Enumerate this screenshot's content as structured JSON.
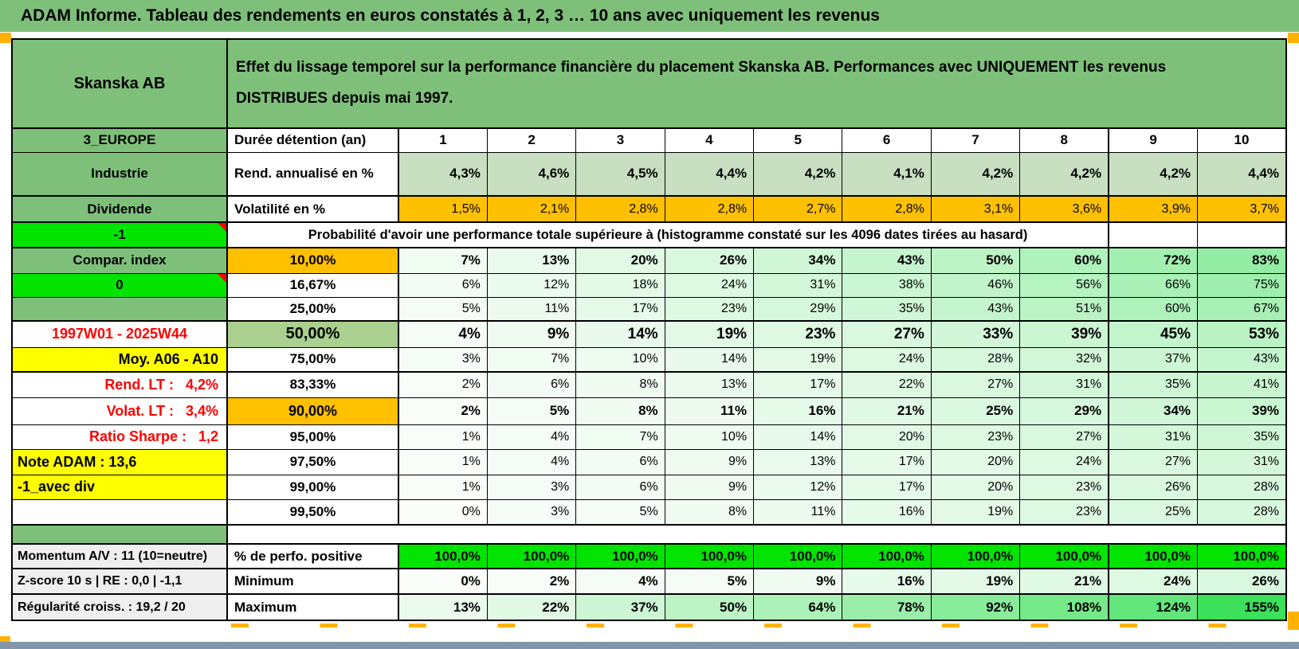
{
  "title": "ADAM Informe. Tableau des rendements en euros constatés à 1, 2, 3 … 10 ans avec uniquement les revenus",
  "header": {
    "name": "Skanska AB",
    "description": "Effet du lissage temporel sur la performance financière du placement Skanska AB. Performances avec UNIQUEMENT les revenus DISTRIBUES depuis mai 1997."
  },
  "left_col": {
    "europe": "3_EUROPE",
    "industrie": "Industrie",
    "dividende": "Dividende",
    "minus1": "-1",
    "compar": "Compar. index",
    "zero": "0",
    "period": "1997W01 - 2025W44",
    "moy": "Moy. A06 - A10",
    "rend_lt": "Rend. LT :   4,2%",
    "volat_lt": "Volat. LT :   3,4%",
    "sharpe": "Ratio Sharpe :   1,2",
    "note": "Note ADAM : 13,6",
    "avecdiv": "-1_avec div",
    "momentum": "Momentum A/V : 11 (10=neutre)",
    "zscore": "Z-score 10 s | RE : 0,0 | -1,1",
    "regularite": "Régularité croiss. : 19,2 / 20"
  },
  "labels": {
    "duree": "Durée détention (an)",
    "rend": "Rend. annualisé en %",
    "volat": "Volatilité en %",
    "proba": "Probabilité d'avoir une performance totale supérieure à (histogramme constaté sur les 4096 dates tirées au hasard)",
    "q10": "10,00%",
    "q16": "16,67%",
    "q25": "25,00%",
    "q50": "50,00%",
    "q75": "75,00%",
    "q83": "83,33%",
    "q90": "90,00%",
    "q95": "95,00%",
    "q97": "97,50%",
    "q99": "99,00%",
    "q995": "99,50%",
    "perfo": "% de perfo. positive",
    "minimum": "Minimum",
    "maximum": "Maximum"
  },
  "values": {
    "cols": [
      "1",
      "2",
      "3",
      "4",
      "5",
      "6",
      "7",
      "8",
      "9",
      "10"
    ],
    "rend": [
      "4,3%",
      "4,6%",
      "4,5%",
      "4,4%",
      "4,2%",
      "4,1%",
      "4,2%",
      "4,2%",
      "4,2%",
      "4,4%"
    ],
    "volat": [
      "1,5%",
      "2,1%",
      "2,8%",
      "2,8%",
      "2,7%",
      "2,8%",
      "3,1%",
      "3,6%",
      "3,9%",
      "3,7%"
    ],
    "q10": [
      7,
      13,
      20,
      26,
      34,
      43,
      50,
      60,
      72,
      83
    ],
    "q16": [
      6,
      12,
      18,
      24,
      31,
      38,
      46,
      56,
      66,
      75
    ],
    "q25": [
      5,
      11,
      17,
      23,
      29,
      35,
      43,
      51,
      60,
      67
    ],
    "q50": [
      4,
      9,
      14,
      19,
      23,
      27,
      33,
      39,
      45,
      53
    ],
    "q75": [
      3,
      7,
      10,
      14,
      19,
      24,
      28,
      32,
      37,
      43
    ],
    "q83": [
      2,
      6,
      8,
      13,
      17,
      22,
      27,
      31,
      35,
      41
    ],
    "q90": [
      2,
      5,
      8,
      11,
      16,
      21,
      25,
      29,
      34,
      39
    ],
    "q95": [
      1,
      4,
      7,
      10,
      14,
      20,
      23,
      27,
      31,
      35
    ],
    "q97": [
      1,
      4,
      6,
      9,
      13,
      17,
      20,
      24,
      27,
      31
    ],
    "q99": [
      1,
      3,
      6,
      9,
      12,
      17,
      20,
      23,
      26,
      28
    ],
    "q995": [
      0,
      3,
      5,
      8,
      11,
      16,
      19,
      23,
      25,
      28
    ],
    "perfo": [
      "100,0%",
      "100,0%",
      "100,0%",
      "100,0%",
      "100,0%",
      "100,0%",
      "100,0%",
      "100,0%",
      "100,0%",
      "100,0%"
    ],
    "minimum": [
      0,
      2,
      4,
      5,
      9,
      16,
      19,
      21,
      24,
      26
    ],
    "maximum": [
      13,
      22,
      37,
      50,
      64,
      78,
      92,
      108,
      124,
      155
    ]
  },
  "colors": {
    "band_green": "#7EC07A",
    "bright_green": "#00E400",
    "orange": "#FFC000",
    "yellow": "#FFFF00",
    "green_50": "#A9D08E",
    "rend_row": "#C8DFC2",
    "gray_left": "#EFEFEF",
    "red_text": "#FF0000",
    "bottom_bar": "#8196AB"
  }
}
